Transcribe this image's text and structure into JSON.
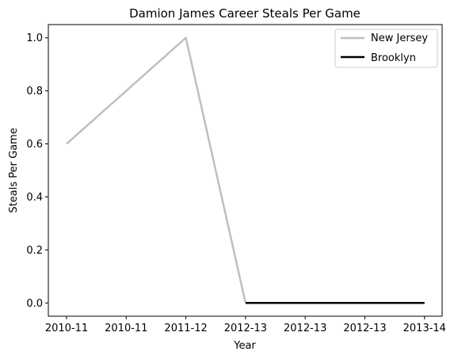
{
  "chart_data": {
    "type": "line",
    "title": "Damion James Career Steals Per Game",
    "xlabel": "Year",
    "ylabel": "Steals Per Game",
    "x_tick_labels": [
      "2010-11",
      "2010-11",
      "2011-12",
      "2012-13",
      "2012-13",
      "2012-13",
      "2013-14"
    ],
    "y_tick_labels": [
      "0.0",
      "0.2",
      "0.4",
      "0.6",
      "0.8",
      "1.0"
    ],
    "ylim": [
      -0.05,
      1.05
    ],
    "grid": false,
    "legend_position": "top-right",
    "series": [
      {
        "name": "New Jersey",
        "color": "#bfbfbf",
        "points": [
          {
            "x": "2010-11",
            "y": 0.6
          },
          {
            "x": "2011-12",
            "y": 1.0
          },
          {
            "x": "2012-13",
            "y": 0.0
          }
        ]
      },
      {
        "name": "Brooklyn",
        "color": "#000000",
        "points": [
          {
            "x": "2012-13",
            "y": 0.0
          },
          {
            "x": "2013-14",
            "y": 0.0
          }
        ]
      }
    ]
  }
}
